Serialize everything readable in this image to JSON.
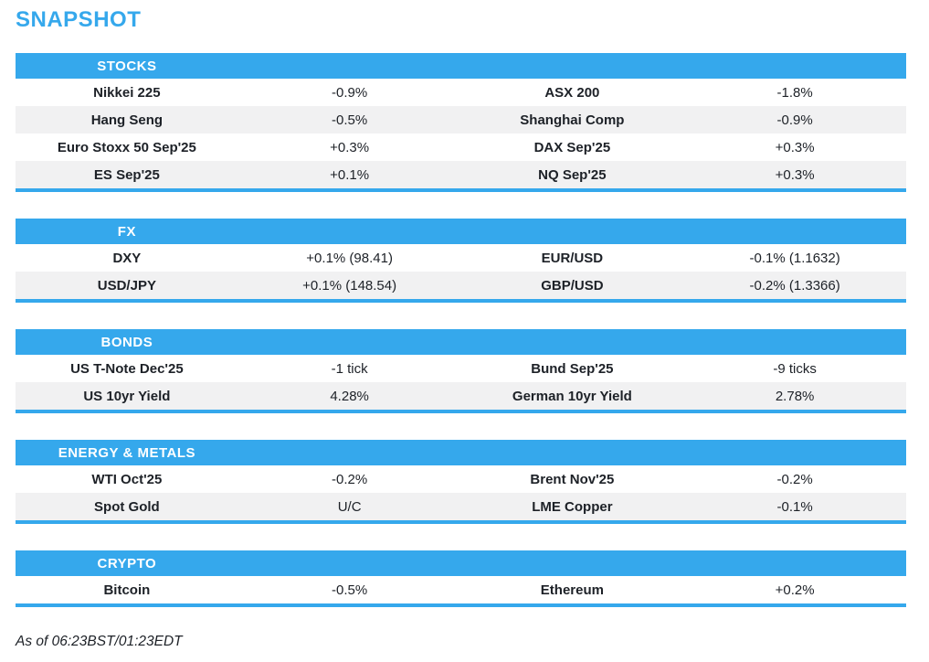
{
  "page": {
    "title": "SNAPSHOT",
    "footer": "As of 06:23BST/01:23EDT"
  },
  "colors": {
    "accent_blue": "#35a8ec",
    "row_alt_gray": "#f1f1f2",
    "header_text": "#ffffff",
    "body_text": "#1d2127"
  },
  "sections": [
    {
      "label": "STOCKS",
      "rows": [
        [
          "Nikkei 225",
          "-0.9%",
          "ASX 200",
          "-1.8%"
        ],
        [
          "Hang Seng",
          "-0.5%",
          "Shanghai Comp",
          "-0.9%"
        ],
        [
          "Euro Stoxx 50 Sep'25",
          "+0.3%",
          "DAX Sep'25",
          "+0.3%"
        ],
        [
          "ES Sep'25",
          "+0.1%",
          "NQ Sep'25",
          "+0.3%"
        ]
      ]
    },
    {
      "label": "FX",
      "rows": [
        [
          "DXY",
          "+0.1% (98.41)",
          "EUR/USD",
          "-0.1% (1.1632)"
        ],
        [
          "USD/JPY",
          "+0.1% (148.54)",
          "GBP/USD",
          "-0.2% (1.3366)"
        ]
      ]
    },
    {
      "label": "BONDS",
      "rows": [
        [
          "US T-Note Dec'25",
          "-1 tick",
          "Bund Sep'25",
          "-9 ticks"
        ],
        [
          "US 10yr Yield",
          "4.28%",
          "German 10yr Yield",
          "2.78%"
        ]
      ]
    },
    {
      "label": "ENERGY & METALS",
      "rows": [
        [
          "WTI Oct'25",
          "-0.2%",
          "Brent Nov'25",
          "-0.2%"
        ],
        [
          "Spot Gold",
          "U/C",
          "LME Copper",
          "-0.1%"
        ]
      ]
    },
    {
      "label": "CRYPTO",
      "rows": [
        [
          "Bitcoin",
          "-0.5%",
          "Ethereum",
          "+0.2%"
        ]
      ]
    }
  ]
}
